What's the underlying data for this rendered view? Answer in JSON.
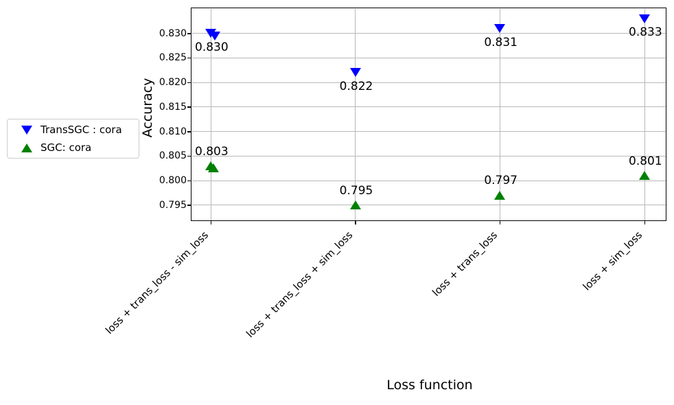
{
  "chart_data": {
    "type": "scatter",
    "xlabel": "Loss function",
    "ylabel": "Accuracy",
    "categories": [
      "loss + trans_loss - sim_loss",
      "loss + trans_loss + sim_loss",
      "loss + trans_loss",
      "loss + sim_loss"
    ],
    "series": [
      {
        "name": "TransSGC : cora",
        "marker": "triangle-down",
        "color": "#0000ff",
        "values": [
          0.83,
          0.822,
          0.831,
          0.833
        ],
        "point_labels": [
          "0.830",
          "0.822",
          "0.831",
          "0.833"
        ],
        "extra_points": [
          {
            "category_index": 0,
            "value": 0.8295,
            "x_offset": 6
          }
        ]
      },
      {
        "name": "SGC: cora",
        "marker": "triangle-up",
        "color": "#008000",
        "values": [
          0.803,
          0.795,
          0.797,
          0.801
        ],
        "point_labels": [
          "0.803",
          "0.795",
          "0.797",
          "0.801"
        ],
        "extra_points": [
          {
            "category_index": 0,
            "value": 0.8026,
            "x_offset": 4
          }
        ]
      }
    ],
    "y_ticks": [
      0.795,
      0.8,
      0.805,
      0.81,
      0.815,
      0.82,
      0.825,
      0.83
    ],
    "ylim": [
      0.7919,
      0.8351
    ],
    "grid": true,
    "legend_position": "outside-left"
  },
  "colors": {
    "grid": "#b8b8b8",
    "spine": "#000000",
    "background": "#ffffff",
    "series_blue": "#0000ff",
    "series_green": "#008000",
    "legend_border": "#cccccc"
  }
}
